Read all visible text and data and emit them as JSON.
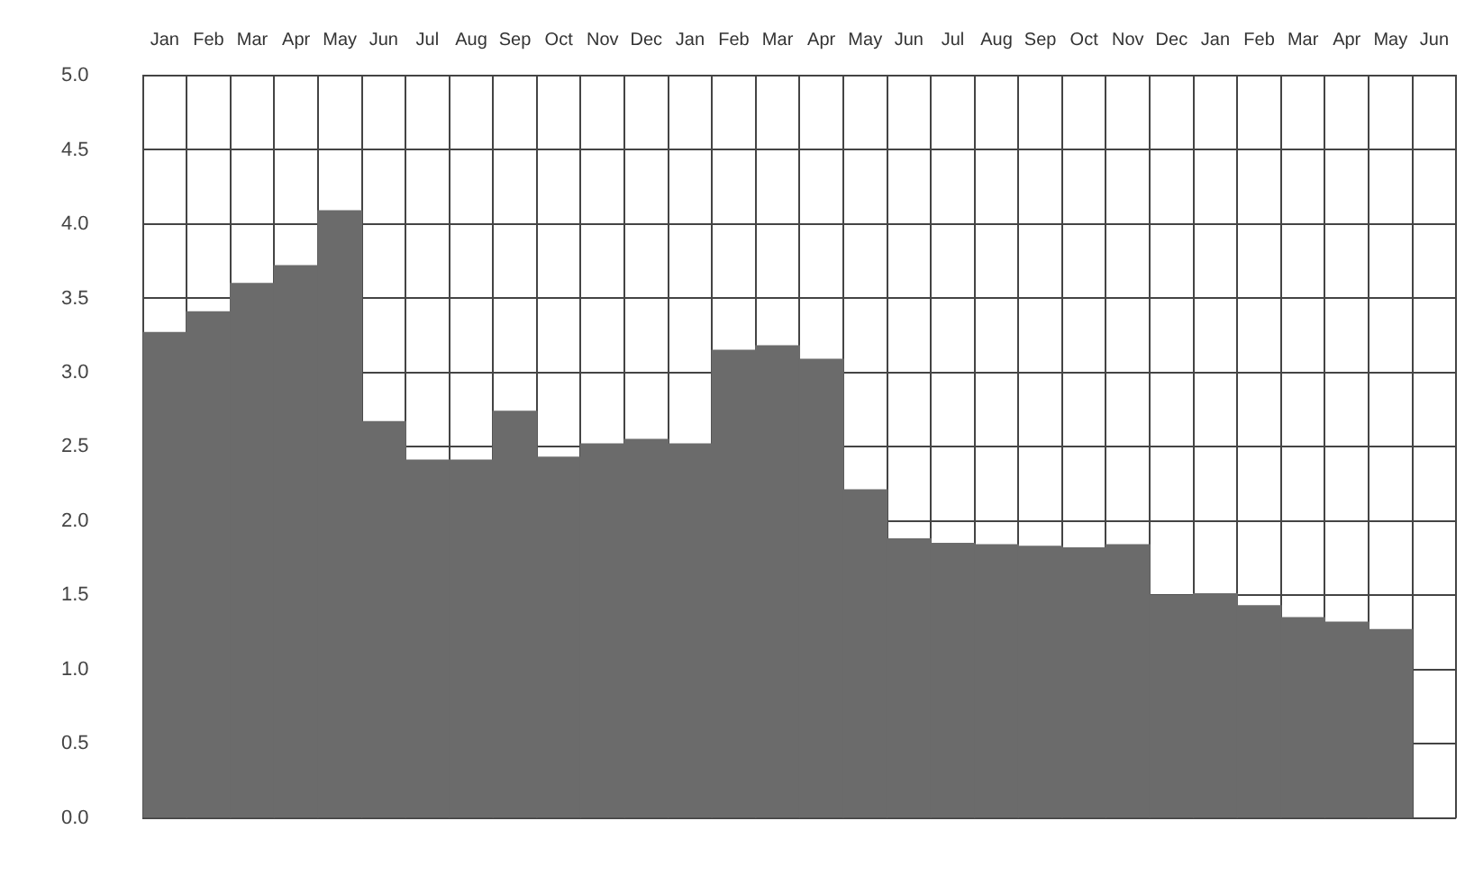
{
  "chart_data": {
    "type": "bar",
    "categories": [
      "Jan",
      "Feb",
      "Mar",
      "Apr",
      "May",
      "Jun",
      "Jul",
      "Aug",
      "Sep",
      "Oct",
      "Nov",
      "Dec",
      "Jan",
      "Feb",
      "Mar",
      "Apr",
      "May",
      "Jun",
      "Jul",
      "Aug",
      "Sep",
      "Oct",
      "Nov",
      "Dec",
      "Jan",
      "Feb",
      "Mar",
      "Apr",
      "May",
      "Jun"
    ],
    "values": [
      3.27,
      3.41,
      3.6,
      3.72,
      4.09,
      2.67,
      2.41,
      2.41,
      2.74,
      2.43,
      2.52,
      2.55,
      2.52,
      3.15,
      3.18,
      3.09,
      2.21,
      1.88,
      1.85,
      1.84,
      1.83,
      1.82,
      1.84,
      1.5,
      1.51,
      1.43,
      1.35,
      1.32,
      1.27,
      null
    ],
    "color": "#6b6b6b",
    "ylim": [
      0,
      5
    ],
    "yticks": [
      {
        "value": 0,
        "label": "0.0"
      },
      {
        "value": 0.5,
        "label": "0.5"
      },
      {
        "value": 1,
        "label": "1.0"
      },
      {
        "value": 1.5,
        "label": "1.5"
      },
      {
        "value": 2,
        "label": "2.0"
      },
      {
        "value": 2.5,
        "label": "2.5"
      },
      {
        "value": 3,
        "label": "3.0"
      },
      {
        "value": 3.5,
        "label": "3.5"
      },
      {
        "value": 4,
        "label": "4.0"
      },
      {
        "value": 4.5,
        "label": "4.5"
      },
      {
        "value": 5,
        "label": "5.0"
      }
    ],
    "grid": true,
    "legend": false
  }
}
